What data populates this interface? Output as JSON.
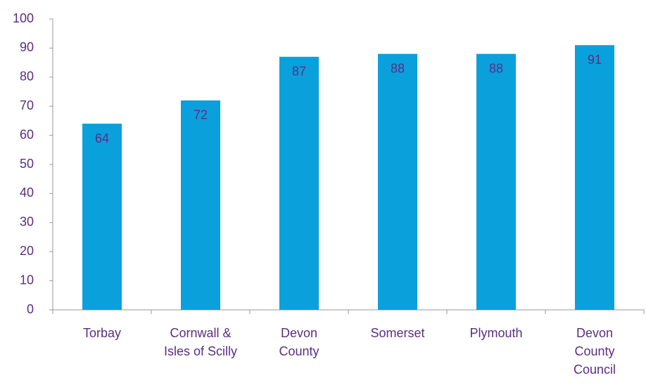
{
  "chart_data": {
    "type": "bar",
    "categories": [
      "Torbay",
      "Cornwall &\nIsles of Scilly",
      "Devon\nCounty",
      "Somerset",
      "Plymouth",
      "Devon\nCounty\nCouncil"
    ],
    "values": [
      64,
      72,
      87,
      88,
      88,
      91
    ],
    "color": "#0aa0dc",
    "ylim": [
      0,
      100
    ],
    "yticks": [
      0,
      10,
      20,
      30,
      40,
      50,
      60,
      70,
      80,
      90,
      100
    ],
    "grid": false
  }
}
